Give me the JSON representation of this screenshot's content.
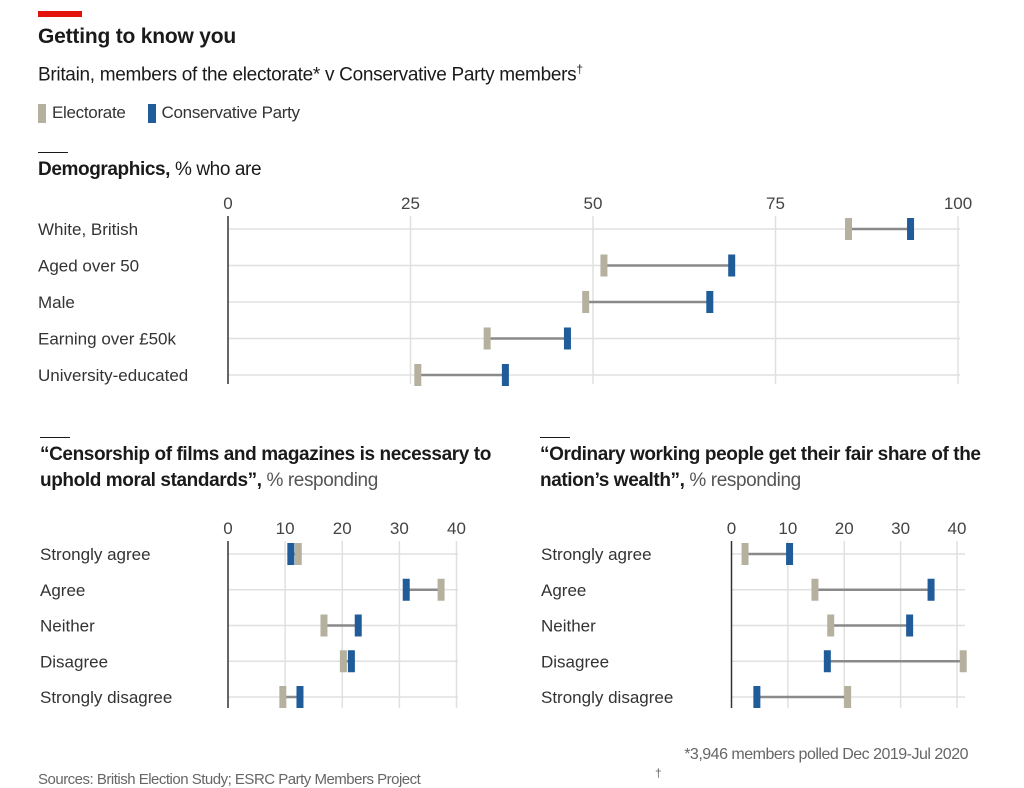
{
  "header": {
    "title": "Getting to know you",
    "subtitle": "Britain, members of the electorate* v Conservative Party members",
    "subtitle_mark": "†"
  },
  "legend": [
    {
      "label": "Electorate",
      "color": "#b5b19e"
    },
    {
      "label": "Conservative Party",
      "color": "#1f5c99"
    }
  ],
  "colors": {
    "electorate": "#b5b19e",
    "conservative": "#1f5c99",
    "connector": "#8a8a8a",
    "grid": "#e0e0e0",
    "axis": "#333333",
    "accent": "#e3120b"
  },
  "chart_data": [
    {
      "type": "dumbbell",
      "title": "Demographics,",
      "unit": "% who are",
      "xlim": [
        0,
        100
      ],
      "xticks": [
        0,
        25,
        50,
        75,
        100
      ],
      "grid": true,
      "categories": [
        "White, British",
        "Aged over 50",
        "Male",
        "Earning over £50k",
        "University-educated"
      ],
      "series": [
        {
          "name": "Electorate",
          "values": [
            85,
            51.5,
            49,
            35.5,
            26
          ]
        },
        {
          "name": "Conservative Party",
          "values": [
            93.5,
            69,
            66,
            46.5,
            38
          ]
        }
      ]
    },
    {
      "type": "dumbbell",
      "title": "“Censorship of films and magazines is necessary to uphold moral standards”,",
      "unit": "% responding",
      "xlim": [
        0,
        40
      ],
      "xticks": [
        0,
        10,
        20,
        30,
        40
      ],
      "grid": true,
      "categories": [
        "Strongly agree",
        "Agree",
        "Neither",
        "Disagree",
        "Strongly disagree"
      ],
      "series": [
        {
          "name": "Electorate",
          "values": [
            12.3,
            37.3,
            16.8,
            20.2,
            9.6
          ]
        },
        {
          "name": "Conservative Party",
          "values": [
            11,
            31.2,
            22.8,
            21.6,
            12.6
          ]
        }
      ]
    },
    {
      "type": "dumbbell",
      "title": "“Ordinary working people get their fair share of the nation’s wealth”,",
      "unit": "% responding",
      "xlim": [
        0,
        40
      ],
      "xticks": [
        0,
        10,
        20,
        30,
        40
      ],
      "grid": true,
      "categories": [
        "Strongly agree",
        "Agree",
        "Neither",
        "Disagree",
        "Strongly disagree"
      ],
      "series": [
        {
          "name": "Electorate",
          "values": [
            2.4,
            14.8,
            17.6,
            41.1,
            20.6
          ]
        },
        {
          "name": "Conservative Party",
          "values": [
            10.3,
            35.4,
            31.6,
            17,
            4.5
          ]
        }
      ]
    }
  ],
  "footer": {
    "note": "*3,946 members polled Dec 2019-Jul 2020",
    "source": "Sources: British Election Study; ESRC Party Members Project",
    "dagger": "†"
  }
}
